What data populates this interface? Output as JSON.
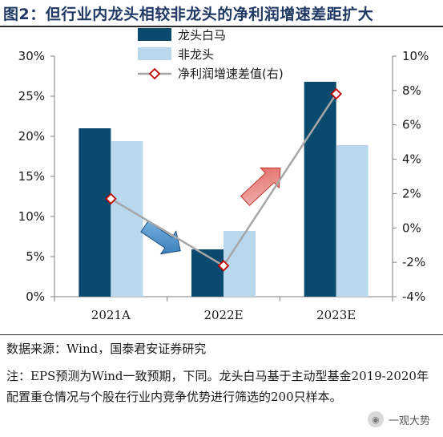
{
  "figure_title": "图2：但行业内龙头相较非龙头的净利润增速差距扩大",
  "source": "数据来源：Wind，国泰君安证券研究",
  "note": "注：EPS预测为Wind一致预期，下同。龙头白马基于主动型基金2019-2020年配置重仓情况与个股在行业内竞争优势进行筛选的200只样本。",
  "watermark": {
    "icon": "wechat-icon",
    "text": "一观大势"
  },
  "colors": {
    "leader": "#0b4a6f",
    "non_leader": "#b9d8ee",
    "line": "#a6a6a6",
    "marker_edge": "#c00000",
    "arrow_blue": "#2e75b6",
    "arrow_red": "#d9534f"
  },
  "chart_data": {
    "type": "bar",
    "categories": [
      "2021A",
      "2022E",
      "2023E"
    ],
    "series": [
      {
        "name": "龙头白马",
        "type": "bar",
        "axis": "left",
        "values": [
          21.0,
          5.9,
          26.8
        ]
      },
      {
        "name": "非龙头",
        "type": "bar",
        "axis": "left",
        "values": [
          19.4,
          8.2,
          18.9
        ]
      },
      {
        "name": "净利润增速差值(右)",
        "type": "line",
        "axis": "right",
        "values": [
          1.7,
          -2.2,
          7.8
        ]
      }
    ],
    "y_left": {
      "range": [
        0,
        30
      ],
      "ticks": [
        "0%",
        "5%",
        "10%",
        "15%",
        "20%",
        "25%",
        "30%"
      ],
      "tick_values": [
        0,
        5,
        10,
        15,
        20,
        25,
        30
      ]
    },
    "y_right": {
      "range": [
        -4,
        10
      ],
      "ticks": [
        "-4%",
        "-2%",
        "0%",
        "2%",
        "4%",
        "6%",
        "8%",
        "10%"
      ],
      "tick_values": [
        -4,
        -2,
        0,
        2,
        4,
        6,
        8,
        10
      ]
    },
    "legend_position": "top-center",
    "grid": false
  }
}
